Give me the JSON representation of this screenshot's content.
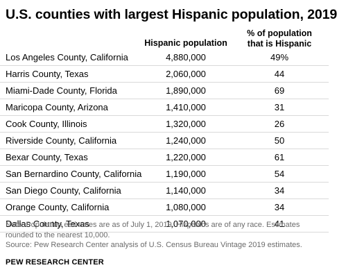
{
  "chart_data": {
    "type": "table",
    "title": "U.S. counties with largest Hispanic population, 2019",
    "columns": [
      "Hispanic population",
      "% of population that is Hispanic"
    ],
    "rows": [
      {
        "county": "Los Angeles County, California",
        "population": "4,880,000",
        "share": "49%"
      },
      {
        "county": "Harris County, Texas",
        "population": "2,060,000",
        "share": "44"
      },
      {
        "county": "Miami-Dade County, Florida",
        "population": "1,890,000",
        "share": "69"
      },
      {
        "county": "Maricopa County, Arizona",
        "population": "1,410,000",
        "share": "31"
      },
      {
        "county": "Cook County, Illinois",
        "population": "1,320,000",
        "share": "26"
      },
      {
        "county": "Riverside County, California",
        "population": "1,240,000",
        "share": "50"
      },
      {
        "county": "Bexar County, Texas",
        "population": "1,220,000",
        "share": "61"
      },
      {
        "county": "San Bernardino County, California",
        "population": "1,190,000",
        "share": "54"
      },
      {
        "county": "San Diego County, California",
        "population": "1,140,000",
        "share": "34"
      },
      {
        "county": "Orange County, California",
        "population": "1,080,000",
        "share": "34"
      },
      {
        "county": "Dallas County, Texas",
        "population": "1,070,000",
        "share": "41"
      }
    ],
    "note": "Note: Population estimates are as of July 1, 2019. Hispanics are of any race. Estimates rounded to the nearest 10,000.",
    "source": "Source: Pew Research Center analysis of U.S. Census Bureau Vintage 2019 estimates.",
    "brand": "PEW RESEARCH CENTER"
  }
}
